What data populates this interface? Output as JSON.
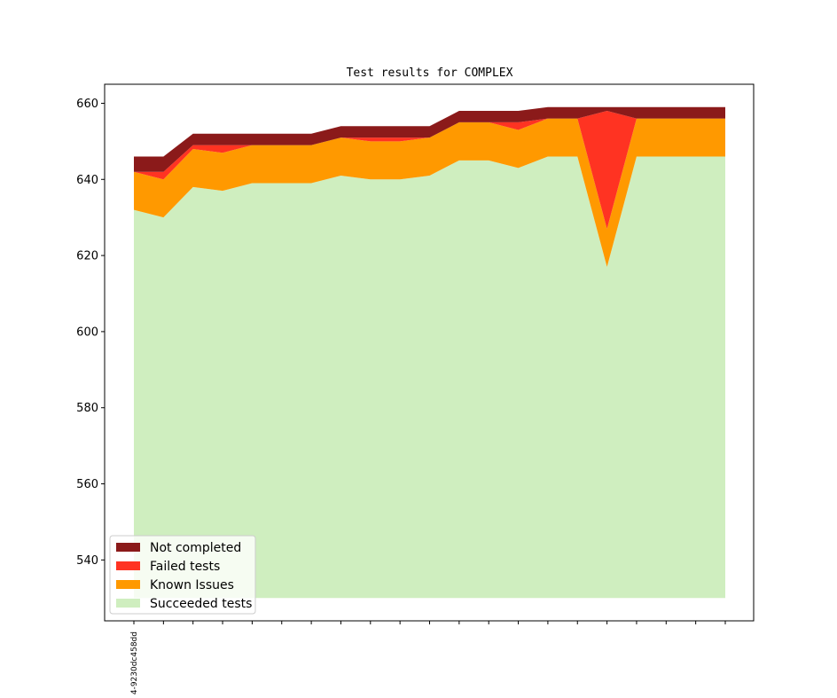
{
  "chart_data": {
    "type": "area",
    "title": "Test results for COMPLEX",
    "xlabel": "",
    "ylabel": "",
    "ylim": [
      524,
      665
    ],
    "yticks": [
      540,
      560,
      580,
      600,
      620,
      640,
      660
    ],
    "x_tick_labels": [
      "4-9230dc458dd"
    ],
    "x_tick_count": 21,
    "baseline": 530,
    "legend_position": "lower-left",
    "series": [
      {
        "name": "Succeeded tests",
        "color": "#cfeebf",
        "values": [
          632,
          630,
          638,
          637,
          639,
          639,
          639,
          641,
          640,
          640,
          641,
          645,
          645,
          643,
          646,
          646,
          617,
          646,
          646,
          646,
          646
        ]
      },
      {
        "name": "Known Issues",
        "color": "#ff9900",
        "values": [
          642,
          640,
          648,
          647,
          649,
          649,
          649,
          651,
          650,
          650,
          651,
          655,
          655,
          653,
          656,
          656,
          627,
          656,
          656,
          656,
          656
        ]
      },
      {
        "name": "Failed tests",
        "color": "#ff3322",
        "values": [
          642,
          642,
          649,
          649,
          649,
          649,
          649,
          651,
          651,
          651,
          651,
          655,
          655,
          655,
          656,
          656,
          658,
          656,
          656,
          656,
          656
        ]
      },
      {
        "name": "Not completed",
        "color": "#8b1a1a",
        "values": [
          646,
          646,
          652,
          652,
          652,
          652,
          652,
          654,
          654,
          654,
          654,
          658,
          658,
          658,
          659,
          659,
          659,
          659,
          659,
          659,
          659
        ]
      }
    ],
    "legend": [
      "Not completed",
      "Failed tests",
      "Known Issues",
      "Succeeded tests"
    ]
  }
}
